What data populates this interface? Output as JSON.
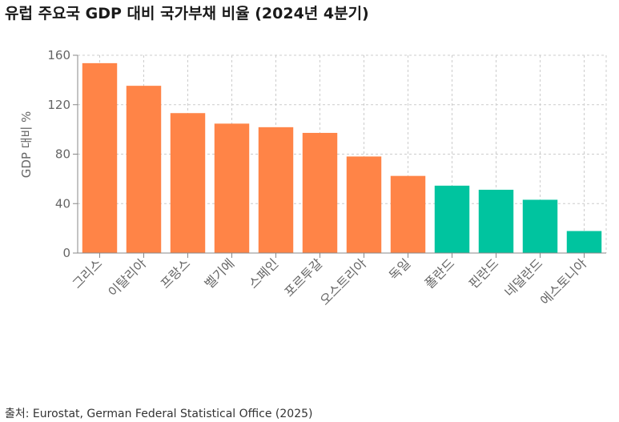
{
  "title": "유럽 주요국 GDP 대비 국가부채 비율 (2024년 4분기)",
  "source": "출처: Eurostat, German Federal Statistical Office (2025)",
  "colors": {
    "high": "#FF8447",
    "low": "#00C49F",
    "grid": "#cccccc",
    "axis": "#888888",
    "tick_text": "#666666"
  },
  "chart_data": {
    "type": "bar",
    "title": "유럽 주요국 GDP 대비 국가부채 비율 (2024년 4분기)",
    "xlabel": "",
    "ylabel": "GDP 대비 %",
    "ylim": [
      0,
      160
    ],
    "yticks": [
      0,
      40,
      80,
      120,
      160
    ],
    "grid": true,
    "categories": [
      "그리스",
      "이탈리아",
      "프랑스",
      "벨기에",
      "스페인",
      "포르투갈",
      "오스트리아",
      "독일",
      "폴란드",
      "핀란드",
      "네덜란드",
      "에스토니아"
    ],
    "values": [
      153.6,
      135.3,
      113.2,
      104.7,
      101.8,
      97.2,
      78.1,
      62.4,
      54.5,
      51.2,
      43.1,
      17.8
    ],
    "bar_colors": [
      "#FF8447",
      "#FF8447",
      "#FF8447",
      "#FF8447",
      "#FF8447",
      "#FF8447",
      "#FF8447",
      "#FF8447",
      "#00C49F",
      "#00C49F",
      "#00C49F",
      "#00C49F"
    ]
  }
}
